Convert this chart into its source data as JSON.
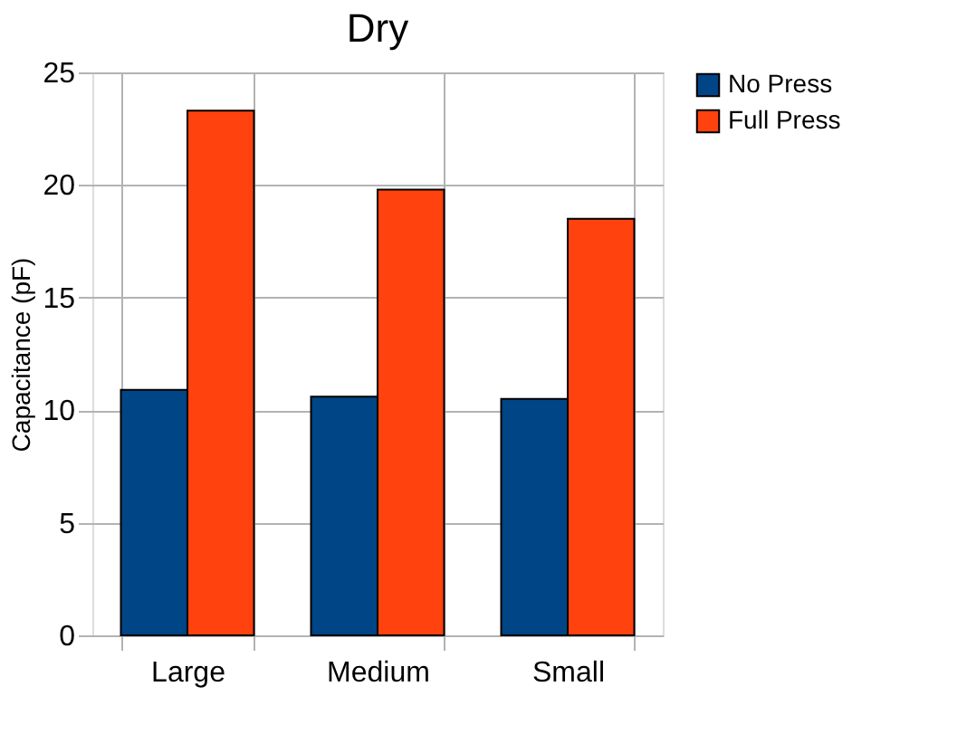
{
  "chart_data": {
    "type": "bar",
    "title": "Dry",
    "ylabel": "Capacitance (pF)",
    "categories": [
      "Large",
      "Medium",
      "Small"
    ],
    "series": [
      {
        "name": "No Press",
        "color": "#004586",
        "values": [
          10.9,
          10.6,
          10.5
        ]
      },
      {
        "name": "Full Press",
        "color": "#ff420e",
        "values": [
          23.3,
          19.8,
          18.5
        ]
      }
    ],
    "ylim": [
      0,
      25
    ],
    "yticks": [
      0,
      5,
      10,
      15,
      20,
      25
    ],
    "grid": true,
    "legend": "right"
  }
}
